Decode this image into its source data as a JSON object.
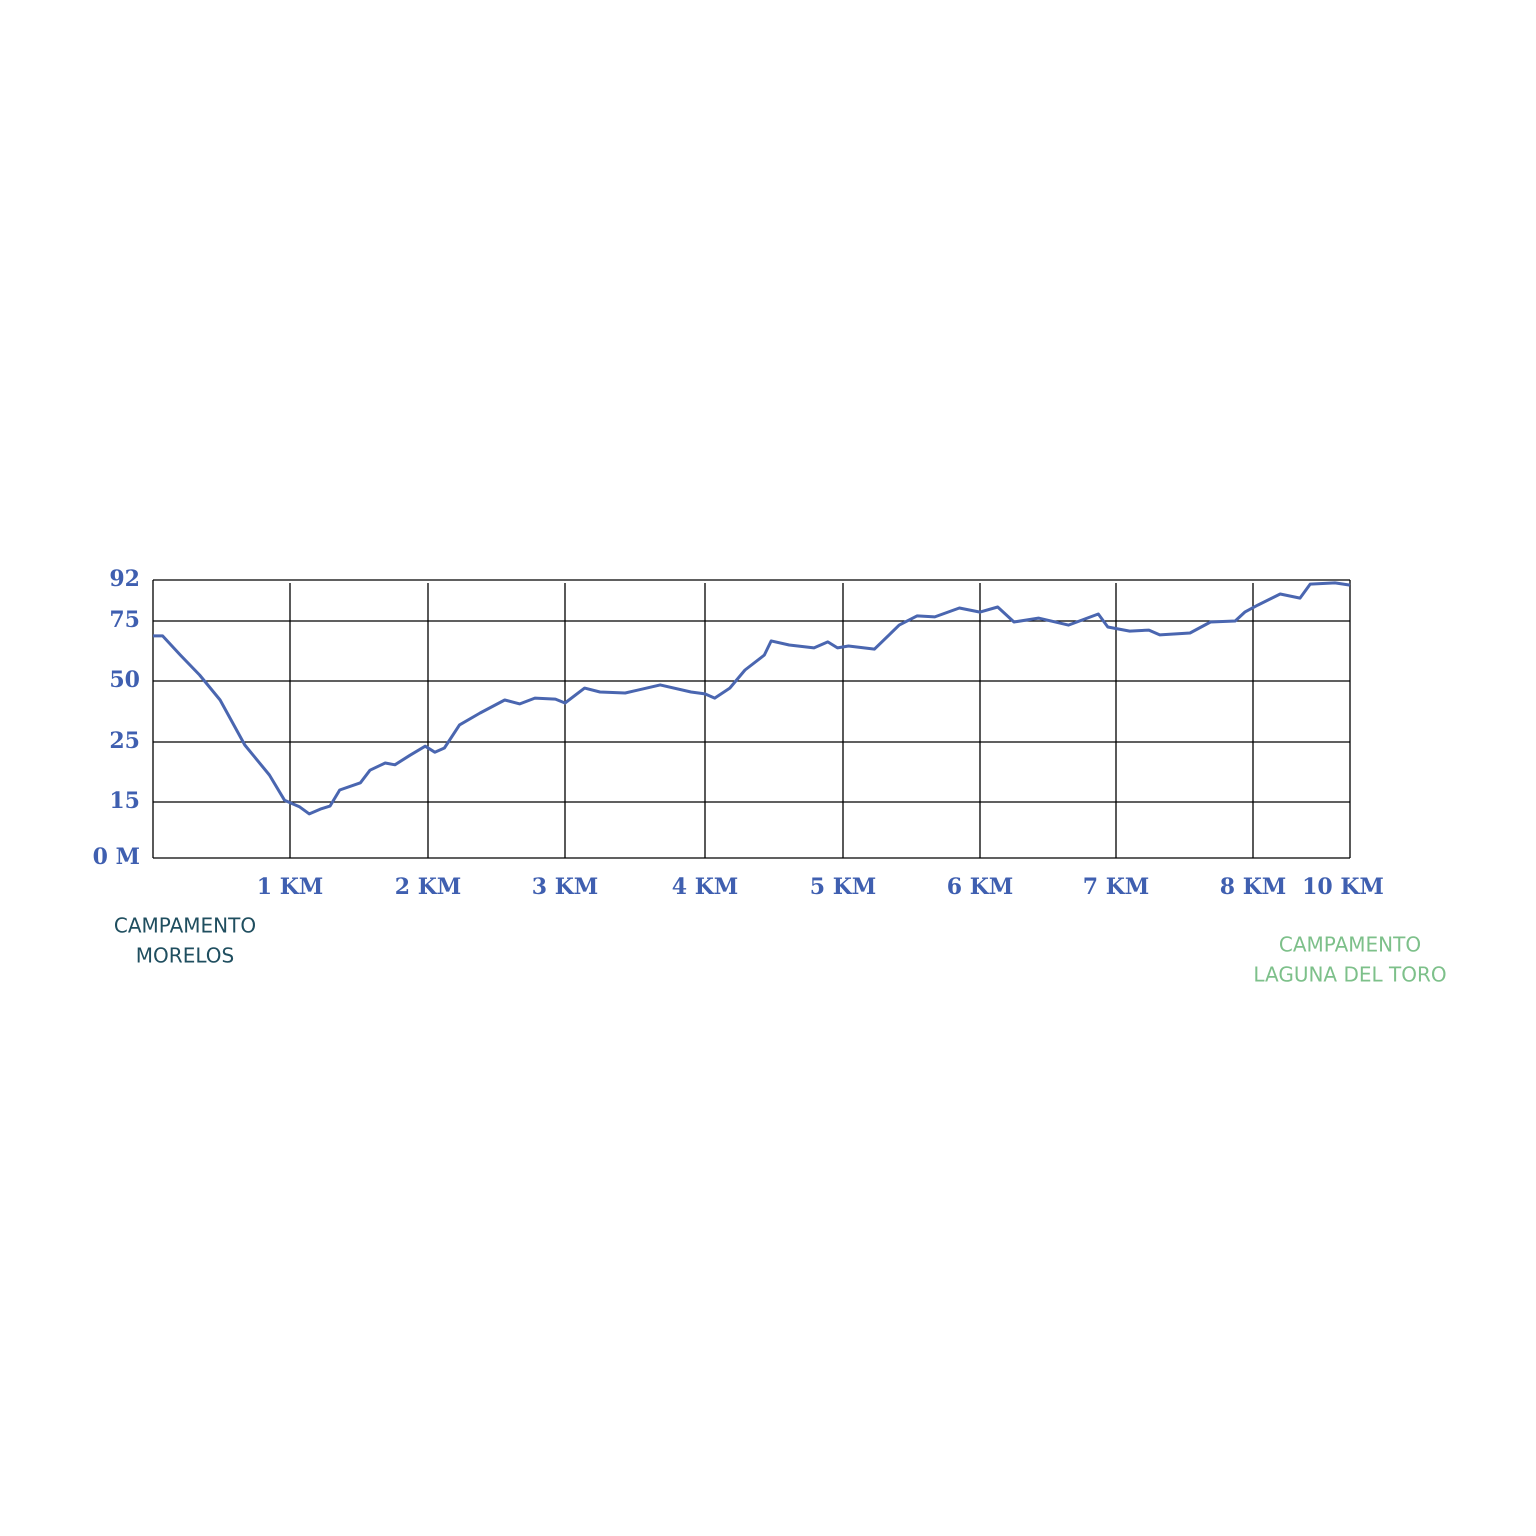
{
  "chart_data": {
    "type": "line",
    "x": [
      0,
      0.07,
      0.2,
      0.34,
      0.49,
      0.67,
      0.85,
      0.96,
      1.07,
      1.14,
      1.22,
      1.29,
      1.36,
      1.51,
      1.58,
      1.69,
      1.76,
      1.87,
      1.98,
      2.05,
      2.12,
      2.23,
      2.38,
      2.56,
      2.67,
      2.78,
      2.93,
      3.0,
      3.14,
      3.25,
      3.43,
      3.68,
      3.9,
      4.0,
      4.07,
      4.18,
      4.29,
      4.43,
      4.48,
      4.61,
      4.79,
      4.89,
      4.96,
      5.04,
      5.23,
      5.41,
      5.54,
      5.67,
      5.85,
      6.0,
      6.13,
      6.25,
      6.43,
      6.65,
      6.87,
      6.94,
      7.1,
      7.24,
      7.32,
      7.54,
      7.69,
      7.87,
      7.94,
      8.1,
      8.56,
      8.97,
      9.18,
      9.69,
      10
    ],
    "series": [
      {
        "color": "#4a66b0",
        "values": [
          68.8,
          68.8,
          60.8,
          52.5,
          42.2,
          24.5,
          19.5,
          15.3,
          13.7,
          11.8,
          13.1,
          13.9,
          17,
          18.2,
          20.3,
          21.5,
          21.2,
          22.8,
          24.3,
          23.3,
          24,
          32,
          36.9,
          42.2,
          40.6,
          43,
          42.6,
          41,
          47.1,
          45.5,
          45.1,
          48.4,
          45.5,
          44.7,
          43,
          47.1,
          54.6,
          60.8,
          66.7,
          65,
          63.8,
          66.3,
          63.8,
          64.6,
          63.3,
          73.3,
          77.1,
          76.7,
          80.4,
          78.7,
          80.8,
          74.6,
          76.2,
          73.3,
          77.9,
          72.5,
          70.8,
          71.2,
          69.2,
          70,
          74.6,
          75,
          78.7,
          81.6,
          86.2,
          84.5,
          90.3,
          90.8,
          89.9
        ]
      }
    ],
    "xlim": [
      0,
      10
    ],
    "xticks": [
      {
        "value": 1,
        "label": "1 KM"
      },
      {
        "value": 2,
        "label": "2 KM"
      },
      {
        "value": 3,
        "label": "3 KM"
      },
      {
        "value": 4,
        "label": "4 KM"
      },
      {
        "value": 5,
        "label": "5 KM"
      },
      {
        "value": 6,
        "label": "6 KM"
      },
      {
        "value": 7,
        "label": "7 KM"
      },
      {
        "value": 8,
        "label": "8 KM"
      },
      {
        "value": 10,
        "label": "10 KM"
      }
    ],
    "ylim": [
      0,
      92
    ],
    "yticks": [
      {
        "value": 0,
        "label": "0 M"
      },
      15,
      25,
      50,
      75,
      92
    ],
    "grid": true,
    "annotations": [
      {
        "lines": [
          "CAMPAMENTO",
          "MORELOS"
        ],
        "color": "#1f4e5f"
      },
      {
        "lines": [
          "CAMPAMENTO",
          "LAGUNA DEL TORO"
        ],
        "color": "#7dc08a"
      }
    ]
  }
}
